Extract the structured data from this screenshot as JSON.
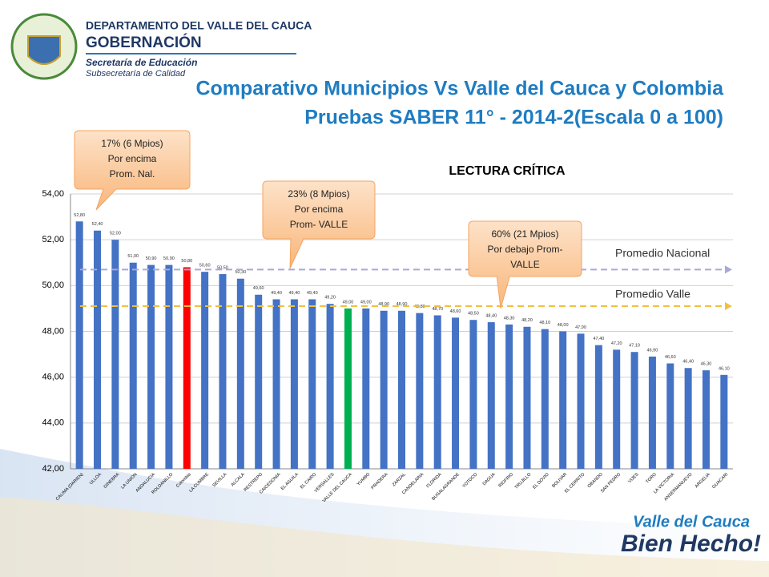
{
  "header": {
    "department": "DEPARTAMENTO DEL VALLE DEL CAUCA",
    "office": "GOBERNACIÓN",
    "secretary": "Secretaría de Educación",
    "subsecretary": "Subsecretaría de Calidad"
  },
  "slide_title": [
    "Comparativo Municipios Vs Valle del Cauca y Colombia",
    "Pruebas SABER 11° - 2014-2(Escala 0 a 100)"
  ],
  "logo": [
    "Valle del Cauca",
    "Bien Hecho!"
  ],
  "chart_data": {
    "type": "bar",
    "title": "LECTURA CRÍTICA",
    "categories": [
      "CALIMA (DARIEN)",
      "ULLOA",
      "GINEBRA",
      "LA UNION",
      "ANDALUCIA",
      "ROLDANILLO",
      "Colombia",
      "LA CUMBRE",
      "SEVILLA",
      "ALCALA",
      "RESTREPO",
      "CAICEDONIA",
      "EL AGUILA",
      "EL CAIRO",
      "VERSALLES",
      "VALLE DEL CAUCA",
      "YUMBO",
      "PRADERA",
      "ZARZAL",
      "CANDELARIA",
      "FLORIDA",
      "BUGALAGRANDE",
      "YOTOCO",
      "DAGUA",
      "RIOFRIO",
      "TRUJILLO",
      "EL DOVIO",
      "BOLIVAR",
      "EL CERRITO",
      "OBANDO",
      "SAN PEDRO",
      "VIJES",
      "TORO",
      "LA VICTORIA",
      "ANSERMANUEVO",
      "ARGELIA",
      "GUACARI"
    ],
    "values": [
      52.8,
      52.4,
      52.0,
      51.0,
      50.9,
      50.9,
      50.8,
      50.6,
      50.5,
      50.3,
      49.6,
      49.4,
      49.4,
      49.4,
      49.2,
      49.0,
      49.0,
      48.9,
      48.9,
      48.8,
      48.7,
      48.6,
      48.5,
      48.4,
      48.3,
      48.2,
      48.1,
      48.0,
      47.9,
      47.4,
      47.2,
      47.1,
      46.9,
      46.6,
      46.4,
      46.3,
      46.1
    ],
    "value_labels": [
      "52,80",
      "52,40",
      "52,00",
      "51,00",
      "50,90",
      "50,90",
      "50,80",
      "50,60",
      "50,50",
      "50,30",
      "49,60",
      "49,40",
      "49,40",
      "49,40",
      "49,20",
      "49,00",
      "49,00",
      "48,90",
      "48,90",
      "48,80",
      "48,70",
      "48,60",
      "48,50",
      "48,40",
      "48,30",
      "48,20",
      "48,10",
      "48,00",
      "47,90",
      "47,40",
      "47,20",
      "47,10",
      "46,90",
      "46,60",
      "46,40",
      "46,30",
      "46,10"
    ],
    "color": "#4472c4",
    "highlight_colors": {
      "6": "#ff0000",
      "15": "#00b050"
    },
    "ylim": [
      42,
      54
    ],
    "yticks": [
      {
        "value": 42,
        "label": "42,00"
      },
      {
        "value": 44,
        "label": "44,00"
      },
      {
        "value": 46,
        "label": "46,00"
      },
      {
        "value": 48,
        "label": "48,00"
      },
      {
        "value": 50,
        "label": "50,00"
      },
      {
        "value": 52,
        "label": "52,00"
      },
      {
        "value": 54,
        "label": "54,00"
      }
    ],
    "grid": true,
    "reference_lines": [
      {
        "label": "Promedio Nacional",
        "value": 50.7,
        "color": "#a9a9d8"
      },
      {
        "label": "Promedio Valle",
        "value": 49.1,
        "color": "#f0c040"
      }
    ],
    "annotations": [
      [
        "17% (6 Mpios)",
        "Por encima",
        "Prom. Nal."
      ],
      [
        "23% (8 Mpios)",
        "Por encima",
        "Prom- VALLE"
      ],
      [
        "60% (21 Mpios)",
        "Por debajo Prom-",
        "VALLE"
      ]
    ]
  }
}
